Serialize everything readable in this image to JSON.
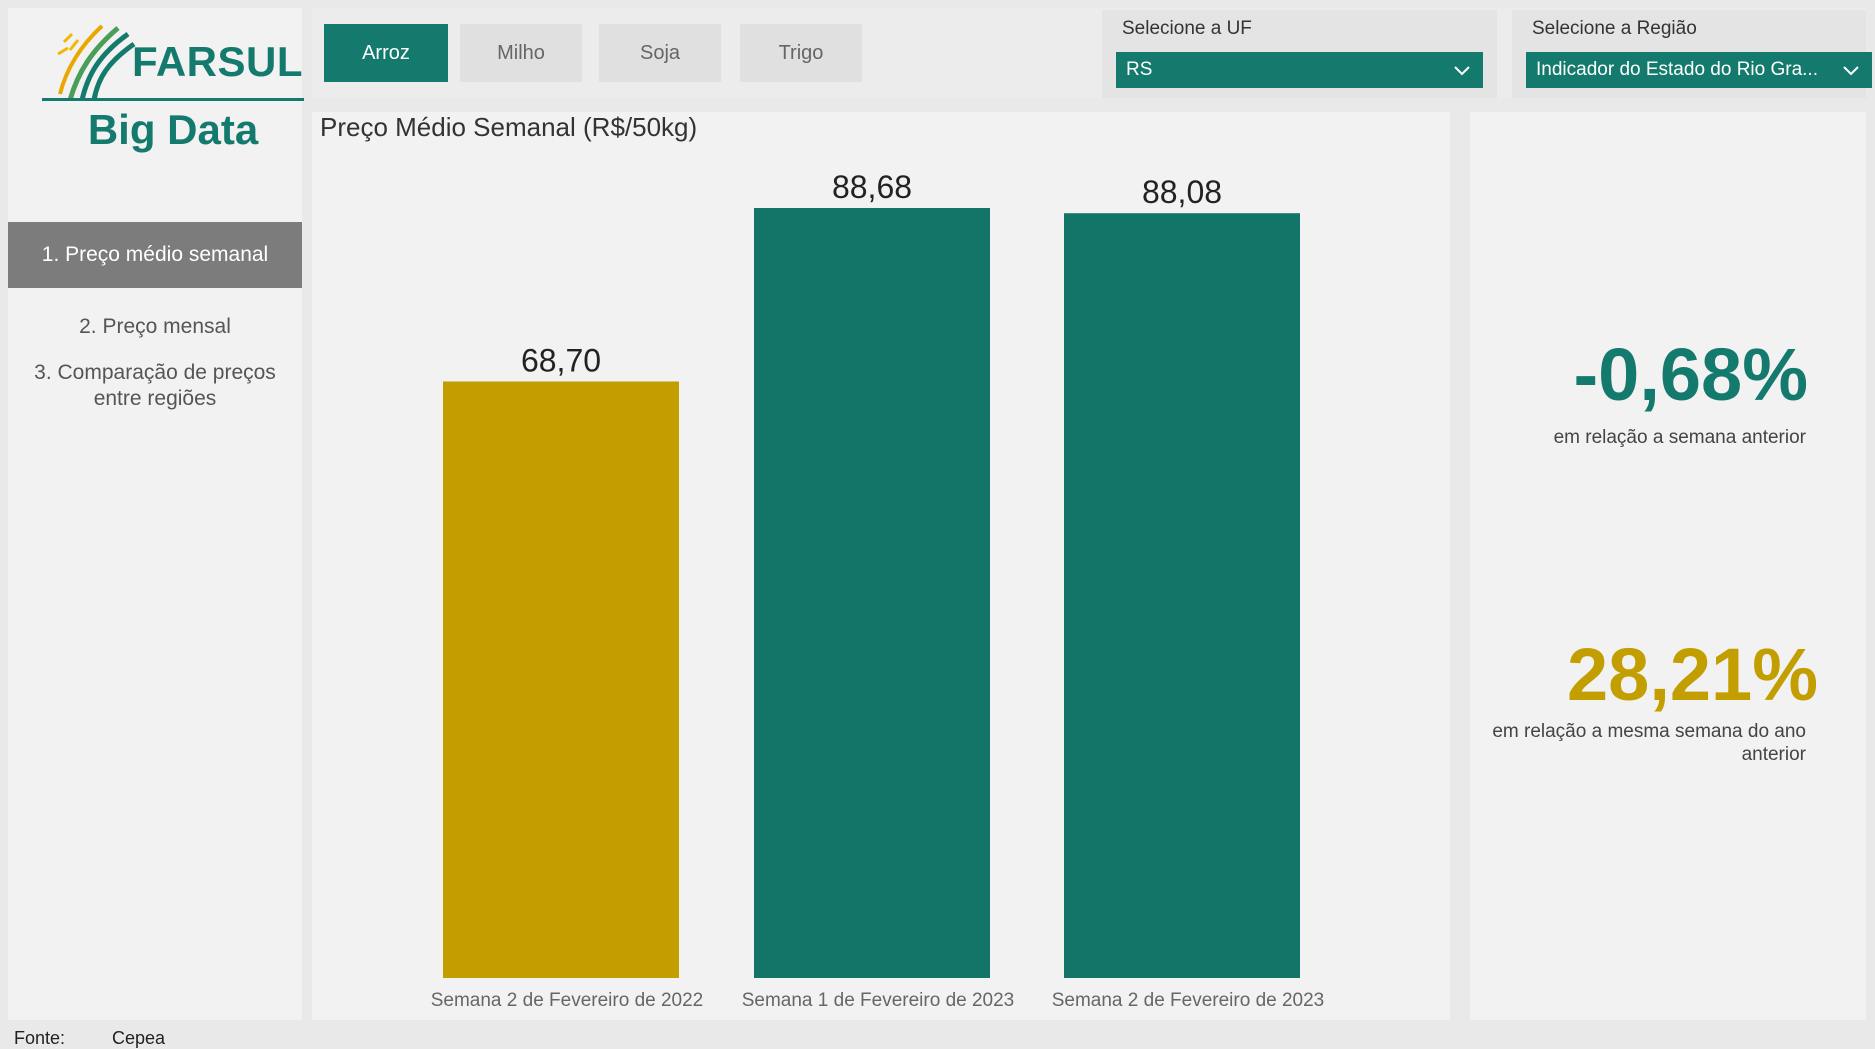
{
  "sidebar": {
    "logo": {
      "name": "FARSUL",
      "subtitle": "Big Data",
      "icon": "wheat-logo-icon"
    },
    "nav": [
      {
        "label": "1. Preço médio semanal",
        "active": true
      },
      {
        "label": "2. Preço mensal",
        "active": false
      },
      {
        "label": "3. Comparação de preços entre regiões",
        "active": false
      }
    ]
  },
  "topbar": {
    "crops": [
      {
        "label": "Arroz",
        "active": true
      },
      {
        "label": "Milho",
        "active": false
      },
      {
        "label": "Soja",
        "active": false
      },
      {
        "label": "Trigo",
        "active": false
      }
    ],
    "uf_filter": {
      "label": "Selecione a UF",
      "value": "RS",
      "icon": "chevron-down-icon"
    },
    "regiao_filter": {
      "label": "Selecione a Região",
      "value": "Indicador do Estado do Rio Gra...",
      "icon": "chevron-down-icon"
    }
  },
  "chart_data": {
    "type": "bar",
    "title": "Preço Médio Semanal (R$/50kg)",
    "categories": [
      "Semana 2 de Fevereiro de 2022",
      "Semana 1 de Fevereiro de 2023",
      "Semana 2 de Fevereiro de 2023"
    ],
    "values": [
      68.7,
      88.68,
      88.08
    ],
    "value_labels": [
      "68,70",
      "88,68",
      "88,08"
    ],
    "colors": [
      "#c29e00",
      "#127568",
      "#127568"
    ],
    "ylim": [
      0,
      88.68
    ],
    "grid": false,
    "xlabel": "",
    "ylabel": ""
  },
  "kpis": {
    "weekly_change": {
      "value": "-0,68%",
      "description": "em relação a semana anterior",
      "color": "#157a6e"
    },
    "yearly_change": {
      "value": "28,21%",
      "description": "em relação a mesma semana do ano anterior",
      "color": "#c29e00"
    }
  },
  "footer": {
    "label": "Fonte:",
    "source": "Cepea"
  },
  "colors": {
    "accent": "#157a6e",
    "gold": "#c29e00",
    "nav_active": "#7c7c7c"
  }
}
